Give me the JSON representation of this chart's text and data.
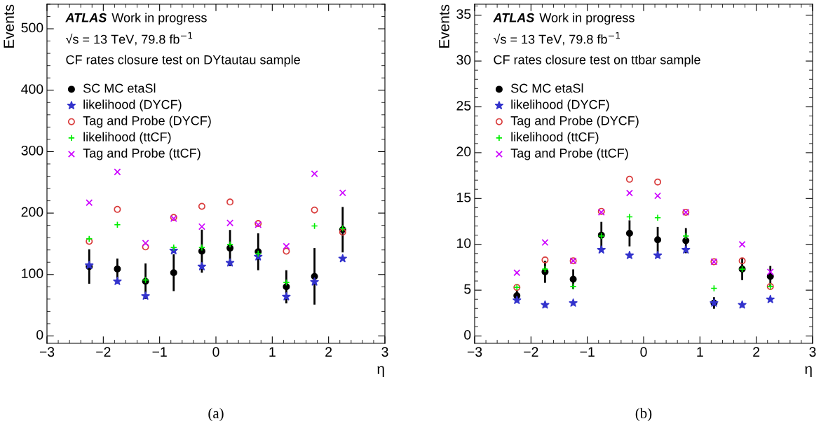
{
  "chart_data": [
    {
      "type": "scatter",
      "xlabel": "η",
      "ylabel": "Events",
      "xlim": [
        -3,
        3
      ],
      "xticks": [
        -3,
        -2,
        -1,
        0,
        1,
        2,
        3
      ],
      "ylim": [
        -12,
        540
      ],
      "yticks": [
        0,
        100,
        200,
        300,
        400,
        500
      ],
      "grid": false,
      "legend": "top left",
      "x": [
        -2.25,
        -1.75,
        -1.25,
        -0.75,
        -0.25,
        0.25,
        0.75,
        1.25,
        1.75,
        2.25
      ],
      "annotations": [
        "ATLAS",
        "Work in progress",
        "√s = 13 TeV, 79.8 fb$^{−1}$",
        "CF rates closure test on DYtautau sample",
        "(a)"
      ],
      "series": [
        {
          "name": "SC MC etaSl",
          "color": "#000000",
          "marker": "circle",
          "values": [
            113,
            109,
            89,
            103,
            138,
            143,
            137,
            80,
            97,
            173
          ],
          "errors": [
            28,
            17,
            29,
            30,
            35,
            29.5,
            30,
            27,
            46,
            37
          ]
        },
        {
          "name": "likelihood (DYCF)",
          "color": "#3333cc",
          "marker": "star",
          "values": [
            115,
            89,
            65,
            139,
            113,
            119,
            129,
            64,
            88,
            126
          ]
        },
        {
          "name": "Tag and Probe (DYCF)",
          "color": "#d93b3b",
          "marker": "circle_open",
          "values": [
            154,
            206,
            145,
            193,
            211,
            218,
            183,
            138,
            205,
            169
          ]
        },
        {
          "name": "likelihood (ttCF)",
          "color": "#00ee00",
          "marker": "plus",
          "values": [
            158,
            181,
            91,
            144,
            144,
            149,
            134,
            87,
            179,
            175
          ]
        },
        {
          "name": "Tag and Probe (ttCF)",
          "color": "#cc00ff",
          "marker": "cross",
          "values": [
            217,
            267,
            151,
            191,
            178,
            184,
            181,
            146,
            264,
            233
          ]
        }
      ]
    },
    {
      "type": "scatter",
      "xlabel": "η",
      "ylabel": "Events",
      "xlim": [
        -3,
        3
      ],
      "xticks": [
        -3,
        -2,
        -1,
        0,
        1,
        2,
        3
      ],
      "ylim": [
        -0.8,
        36.2
      ],
      "yticks": [
        0,
        5,
        10,
        15,
        20,
        25,
        30,
        35
      ],
      "grid": false,
      "legend": "top left",
      "x": [
        -2.25,
        -1.75,
        -1.25,
        -0.75,
        -0.25,
        0.25,
        0.75,
        1.25,
        1.75,
        2.25
      ],
      "annotations": [
        "ATLAS",
        "Work in progress",
        "√s = 13 TeV, 79.8 fb$^{−1}$",
        "CF rates closure test on ttbar sample",
        "(b)"
      ],
      "series": [
        {
          "name": "SC MC etaSl",
          "color": "#000000",
          "marker": "circle",
          "values": [
            4.4,
            7.0,
            6.2,
            11.0,
            11.2,
            10.5,
            10.4,
            3.6,
            7.3,
            6.5
          ],
          "errors": [
            0.6,
            1.2,
            1.07,
            1.45,
            1.42,
            1.4,
            1.37,
            0.63,
            1.2,
            1.14
          ]
        },
        {
          "name": "likelihood (DYCF)",
          "color": "#3333cc",
          "marker": "star",
          "values": [
            3.9,
            3.4,
            3.6,
            9.4,
            8.8,
            8.8,
            9.4,
            3.6,
            3.4,
            4.0
          ]
        },
        {
          "name": "Tag and Probe (DYCF)",
          "color": "#d93b3b",
          "marker": "circle_open",
          "values": [
            5.3,
            8.3,
            8.2,
            13.6,
            17.1,
            16.8,
            13.5,
            8.1,
            8.2,
            5.4
          ]
        },
        {
          "name": "likelihood (ttCF)",
          "color": "#00ee00",
          "marker": "plus",
          "values": [
            5.3,
            7.3,
            5.4,
            10.9,
            13.0,
            12.9,
            10.9,
            5.2,
            7.3,
            5.4
          ]
        },
        {
          "name": "Tag and Probe (ttCF)",
          "color": "#cc00ff",
          "marker": "cross",
          "values": [
            6.9,
            10.2,
            8.2,
            13.5,
            15.6,
            15.3,
            13.5,
            8.1,
            10.0,
            7.0
          ]
        }
      ]
    }
  ]
}
